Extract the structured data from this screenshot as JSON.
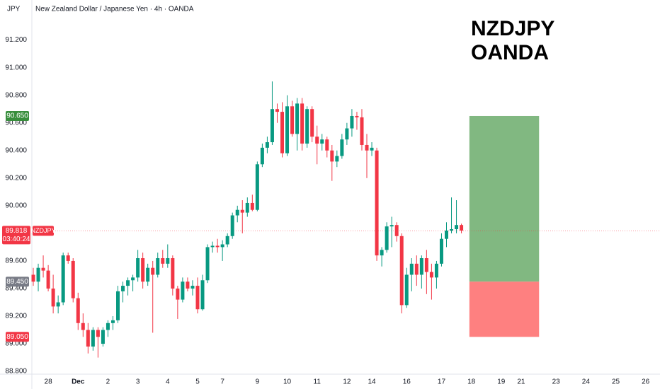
{
  "chart_data": {
    "type": "candlestick",
    "title": "New Zealand Dollar / Japanese Yen · 4h · OANDA",
    "y_unit": "JPY",
    "watermark": [
      "NZDJPY",
      "OANDA"
    ],
    "up_color": "#089981",
    "down_color": "#f23645",
    "grid": false,
    "ylim": [
      88.78,
      91.49
    ],
    "yticks": [
      {
        "value": 88.8,
        "label": "88.800"
      },
      {
        "value": 89.0,
        "label": "89.000"
      },
      {
        "value": 89.2,
        "label": "89.200"
      },
      {
        "value": 89.4,
        "label": "89.400"
      },
      {
        "value": 89.6,
        "label": "89.600"
      },
      {
        "value": 89.8,
        "label": "89.800"
      },
      {
        "value": 90.0,
        "label": "90.000"
      },
      {
        "value": 90.2,
        "label": "90.200"
      },
      {
        "value": 90.4,
        "label": "90.400"
      },
      {
        "value": 90.6,
        "label": "90.600"
      },
      {
        "value": 90.8,
        "label": "90.800"
      },
      {
        "value": 91.0,
        "label": "91.000"
      },
      {
        "value": 91.2,
        "label": "91.200"
      }
    ],
    "last_price": {
      "value": 89.818,
      "label": "89.818",
      "symbol": "NZDJPY",
      "countdown": "03:40:24",
      "color": "#f23645"
    },
    "position": {
      "target": {
        "value": 90.65,
        "label": "90.650",
        "color": "#388e3c"
      },
      "entry": {
        "value": 89.45,
        "label": "89.450",
        "color": "#787b86"
      },
      "stop": {
        "value": 89.05,
        "label": "89.050",
        "color": "#f23645"
      },
      "profit_color": "#81b881",
      "loss_color": "#fe8080"
    },
    "categories": [
      null,
      null,
      null,
      "28",
      null,
      null,
      null,
      null,
      null,
      "Dec",
      null,
      null,
      null,
      null,
      null,
      "2",
      null,
      null,
      null,
      null,
      null,
      "3",
      null,
      null,
      null,
      null,
      null,
      "4",
      null,
      null,
      null,
      null,
      null,
      "5",
      null,
      null,
      null,
      null,
      "7",
      null,
      null,
      null,
      null,
      null,
      null,
      "9",
      null,
      null,
      null,
      null,
      null,
      "10",
      null,
      null,
      null,
      null,
      null,
      "11",
      null,
      null,
      null,
      null,
      null,
      "12",
      null,
      null,
      null,
      null,
      "14",
      null,
      null,
      null,
      null,
      null,
      null,
      "16",
      null,
      null,
      null,
      null,
      null,
      null,
      "17",
      null,
      null,
      null,
      null,
      null,
      "18",
      null,
      null,
      null,
      null,
      null,
      "19",
      null,
      null,
      null,
      "21",
      null,
      null,
      null,
      null,
      null,
      null,
      "23",
      null,
      null,
      null,
      null,
      null,
      "24",
      null,
      null,
      null,
      null,
      null,
      "25",
      null,
      null,
      null,
      null,
      null,
      "26",
      null,
      null
    ],
    "open": [
      89.5,
      89.45,
      89.55,
      89.53,
      89.4,
      89.27,
      89.3,
      89.64,
      89.6,
      89.33,
      89.15,
      89.1,
      88.98,
      89.1,
      89.0,
      89.1,
      89.15,
      89.17,
      89.38,
      89.42,
      89.46,
      89.48,
      89.62,
      89.45,
      89.55,
      89.5,
      89.62,
      89.58,
      89.62,
      89.4,
      89.32,
      89.45,
      89.4,
      89.42,
      89.25,
      89.46,
      89.7,
      89.71,
      89.7,
      89.72,
      89.78,
      89.93,
      89.97,
      89.95,
      90.02,
      89.97,
      90.3,
      90.42,
      90.46,
      90.7,
      90.68,
      90.38,
      90.72,
      90.52,
      90.74,
      90.45,
      90.7,
      90.5,
      90.45,
      90.48,
      90.4,
      90.32,
      90.36,
      90.48,
      90.56,
      90.65,
      90.64,
      90.44,
      90.4,
      90.4,
      89.64,
      89.68,
      89.85,
      89.86,
      89.78,
      89.28,
      89.5,
      89.58,
      89.5,
      89.62,
      89.52,
      89.48,
      89.58,
      89.76,
      89.82,
      89.83,
      89.86,
      null,
      null,
      null,
      null,
      null,
      null,
      null,
      null,
      null,
      null,
      null,
      null,
      null,
      null,
      null,
      null,
      null,
      null,
      null,
      null,
      null,
      null,
      null,
      null,
      null,
      null,
      null,
      null,
      null,
      null,
      null,
      null,
      null,
      null,
      null,
      null,
      null,
      null,
      null
    ],
    "high": [
      89.55,
      89.58,
      89.64,
      89.57,
      89.5,
      89.35,
      89.66,
      89.66,
      89.62,
      89.37,
      89.22,
      89.15,
      89.12,
      89.12,
      89.12,
      89.17,
      89.2,
      89.42,
      89.45,
      89.48,
      89.5,
      89.68,
      89.66,
      89.58,
      89.6,
      89.66,
      89.68,
      89.72,
      89.64,
      89.42,
      89.48,
      89.48,
      89.46,
      89.48,
      89.5,
      89.72,
      89.74,
      89.76,
      89.75,
      89.8,
      89.95,
      90.0,
      90.04,
      90.06,
      90.08,
      90.32,
      90.45,
      90.5,
      90.9,
      90.74,
      90.75,
      90.8,
      90.76,
      90.78,
      90.78,
      90.72,
      90.72,
      90.58,
      90.52,
      90.5,
      90.44,
      90.4,
      90.52,
      90.6,
      90.7,
      90.68,
      90.7,
      90.52,
      90.46,
      90.42,
      89.7,
      89.88,
      89.92,
      89.88,
      89.8,
      89.55,
      89.62,
      89.64,
      89.64,
      89.68,
      89.58,
      89.6,
      89.8,
      89.88,
      90.06,
      90.04,
      89.87,
      null,
      null,
      null,
      null,
      null,
      null,
      null,
      null,
      null,
      null,
      null,
      null,
      null,
      null,
      null,
      null,
      null,
      null,
      null,
      null,
      null,
      null,
      null,
      null,
      null,
      null,
      null,
      null,
      null,
      null,
      null,
      null,
      null,
      null,
      null,
      null,
      null,
      null,
      null
    ],
    "low": [
      89.42,
      89.38,
      89.48,
      89.38,
      89.22,
      89.22,
      89.28,
      89.58,
      89.3,
      89.1,
      89.05,
      88.93,
      88.95,
      88.9,
      88.98,
      89.05,
      89.1,
      89.15,
      89.3,
      89.35,
      89.38,
      89.45,
      89.4,
      89.42,
      89.08,
      89.48,
      89.55,
      89.55,
      89.35,
      89.18,
      89.3,
      89.38,
      89.35,
      89.22,
      89.24,
      89.44,
      89.66,
      89.66,
      89.6,
      89.7,
      89.76,
      89.88,
      89.8,
      89.92,
      89.96,
      89.96,
      90.28,
      90.38,
      90.44,
      90.6,
      90.35,
      90.36,
      90.5,
      90.4,
      90.4,
      90.42,
      90.46,
      90.3,
      90.4,
      90.35,
      90.18,
      90.28,
      90.34,
      90.44,
      90.5,
      90.55,
      90.4,
      90.2,
      90.36,
      89.6,
      89.56,
      89.66,
      89.7,
      89.74,
      89.22,
      89.26,
      89.38,
      89.42,
      89.4,
      89.36,
      89.32,
      89.4,
      89.56,
      89.7,
      89.8,
      89.8,
      89.8,
      null,
      null,
      null,
      null,
      null,
      null,
      null,
      null,
      null,
      null,
      null,
      null,
      null,
      null,
      null,
      null,
      null,
      null,
      null,
      null,
      null,
      null,
      null,
      null,
      null,
      null,
      null,
      null,
      null,
      null,
      null,
      null,
      null,
      null,
      null,
      null,
      null,
      null,
      null
    ],
    "close": [
      89.45,
      89.55,
      89.53,
      89.4,
      89.27,
      89.3,
      89.64,
      89.6,
      89.33,
      89.15,
      89.1,
      88.98,
      89.1,
      89.05,
      89.1,
      89.15,
      89.17,
      89.38,
      89.42,
      89.46,
      89.48,
      89.62,
      89.45,
      89.55,
      89.5,
      89.62,
      89.58,
      89.62,
      89.4,
      89.32,
      89.45,
      89.4,
      89.42,
      89.25,
      89.46,
      89.7,
      89.71,
      89.7,
      89.72,
      89.78,
      89.93,
      89.97,
      89.95,
      90.02,
      89.97,
      90.3,
      90.42,
      90.46,
      90.7,
      90.68,
      90.38,
      90.72,
      90.52,
      90.74,
      90.45,
      90.7,
      90.5,
      90.45,
      90.48,
      90.4,
      90.32,
      90.36,
      90.48,
      90.56,
      90.65,
      90.64,
      90.44,
      90.4,
      90.42,
      89.64,
      89.68,
      89.85,
      89.86,
      89.78,
      89.28,
      89.5,
      89.58,
      89.5,
      89.62,
      89.52,
      89.48,
      89.58,
      89.76,
      89.82,
      89.83,
      89.86,
      89.82,
      null,
      null,
      null,
      null,
      null,
      null,
      null,
      null,
      null,
      null,
      null,
      null,
      null,
      null,
      null,
      null,
      null,
      null,
      null,
      null,
      null,
      null,
      null,
      null,
      null,
      null,
      null,
      null,
      null,
      null,
      null,
      null,
      null,
      null,
      null,
      null,
      null,
      null,
      null
    ]
  }
}
